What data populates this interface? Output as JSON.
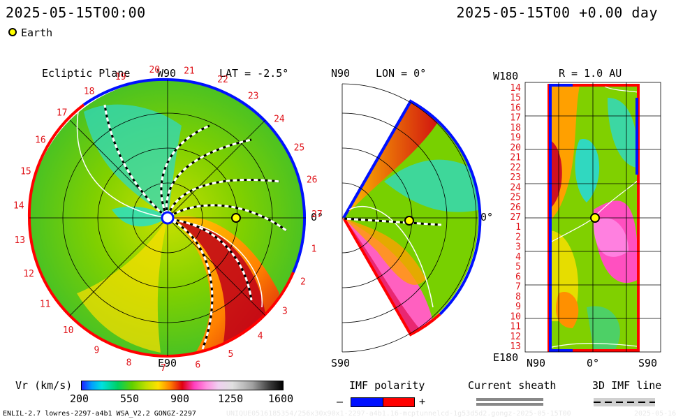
{
  "header": {
    "timestamp_left": "2025-05-15T00:00",
    "timestamp_right": "2025-05-15T00 +0.00 day"
  },
  "legend_earth": {
    "label": "Earth",
    "color": "#ffff00"
  },
  "ecliptic": {
    "title": "Ecliptic Plane",
    "lat_label": "LAT = -2.5°",
    "top_label": "W90",
    "bottom_label": "E90",
    "right_label": "0°",
    "rotation_labels": [
      "20",
      "21",
      "22",
      "23",
      "24",
      "25",
      "26",
      "27",
      "1",
      "2",
      "3",
      "4",
      "5",
      "6",
      "7",
      "8",
      "9",
      "10",
      "11",
      "12",
      "13",
      "14",
      "15",
      "16",
      "17",
      "18",
      "19"
    ]
  },
  "meridional": {
    "lon_label": "LON = 0°",
    "top_label": "N90",
    "bottom_label": "S90",
    "right_label": "0°"
  },
  "radial": {
    "r_label": "R = 1.0 AU",
    "top_left_label": "W180",
    "bottom_left_label": "E180",
    "bottom_labels": [
      "N90",
      "0°",
      "S90"
    ],
    "rotation_labels": [
      "14",
      "15",
      "16",
      "17",
      "18",
      "19",
      "20",
      "21",
      "22",
      "23",
      "24",
      "25",
      "26",
      "27",
      "1",
      "2",
      "3",
      "4",
      "5",
      "6",
      "7",
      "8",
      "9",
      "10",
      "11",
      "12",
      "13"
    ]
  },
  "colorbar": {
    "label": "Vr (km/s)",
    "ticks": [
      "200",
      "550",
      "900",
      "1250",
      "1600"
    ]
  },
  "imf_polarity": {
    "title": "IMF polarity",
    "minus": "–",
    "plus": "+",
    "neg_color": "#0010ff",
    "pos_color": "#ff0000"
  },
  "current_sheath": {
    "title": "Current sheath"
  },
  "imf_line": {
    "title": "3D IMF line"
  },
  "footer": {
    "left": "ENLIL-2.7 lowres-2297-a4b1 WSA_V2.2 GONGZ-2297",
    "middle": "UNIQUE0516185354/256x30x90x1-2297-a4b1.16-mcptunnelcd-1g53d5d2.gongz-2025-05-15T00",
    "right": "2025-05-16"
  }
}
